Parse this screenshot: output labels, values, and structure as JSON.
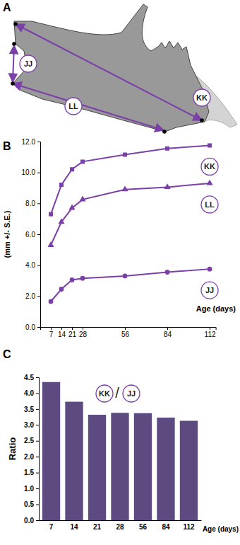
{
  "diagram": {
    "label": "A",
    "measurements": [
      "JJ",
      "KK",
      "LL"
    ]
  },
  "chart_data": [
    {
      "type": "line",
      "title": "B",
      "y_label": "(mm +/- S.E.)",
      "x_label": "Age (days)",
      "x": [
        7,
        14,
        21,
        28,
        56,
        84,
        112
      ],
      "series": [
        {
          "name": "KK",
          "color": "#7b3fa8",
          "marker": "square",
          "line_style": "solid",
          "values": [
            7.3,
            9.2,
            10.2,
            10.7,
            11.15,
            11.55,
            11.75
          ]
        },
        {
          "name": "LL",
          "color": "#7b3fa8",
          "marker": "triangle",
          "line_style": "solid",
          "values": [
            5.3,
            6.8,
            7.7,
            8.25,
            8.9,
            9.05,
            9.3
          ]
        },
        {
          "name": "JJ",
          "color": "#7b3fa8",
          "marker": "circle",
          "line_style": "solid",
          "values": [
            1.65,
            2.45,
            3.05,
            3.15,
            3.3,
            3.55,
            3.75
          ]
        }
      ],
      "xlim": [
        0,
        116
      ],
      "xticks": [
        7,
        14,
        21,
        28,
        56,
        84,
        112
      ],
      "ylim": [
        0,
        12
      ],
      "yticks": [
        {
          "value": 0,
          "label": "0.0"
        },
        {
          "value": 2,
          "label": "2.0"
        },
        {
          "value": 4,
          "label": "4.0"
        },
        {
          "value": 6,
          "label": "6.0"
        },
        {
          "value": 8,
          "label": "8.0"
        },
        {
          "value": 10,
          "label": "10.0"
        },
        {
          "value": 12,
          "label": "12.0"
        }
      ],
      "grid": false
    },
    {
      "type": "bar",
      "title": "C",
      "y_label": "Ratio",
      "x_label": "Age (days)",
      "annotations": [
        "KK",
        "/",
        "JJ"
      ],
      "categories": [
        "7",
        "14",
        "21",
        "28",
        "56",
        "84",
        "112"
      ],
      "values": [
        4.35,
        3.73,
        3.32,
        3.38,
        3.37,
        3.23,
        3.13
      ],
      "color": "#5c4a80",
      "ylim": [
        0,
        4.5
      ],
      "yticks": [
        {
          "value": 0,
          "label": "0.0"
        },
        {
          "value": 0.5,
          "label": "0.5"
        },
        {
          "value": 1,
          "label": "1.0"
        },
        {
          "value": 1.5,
          "label": "1.5"
        },
        {
          "value": 2,
          "label": "2.0"
        },
        {
          "value": 2.5,
          "label": "2.5"
        },
        {
          "value": 3,
          "label": "3.0"
        },
        {
          "value": 3.5,
          "label": "3.5"
        },
        {
          "value": 4,
          "label": "4.0"
        },
        {
          "value": 4.5,
          "label": "4.5"
        }
      ],
      "grid": false
    }
  ]
}
